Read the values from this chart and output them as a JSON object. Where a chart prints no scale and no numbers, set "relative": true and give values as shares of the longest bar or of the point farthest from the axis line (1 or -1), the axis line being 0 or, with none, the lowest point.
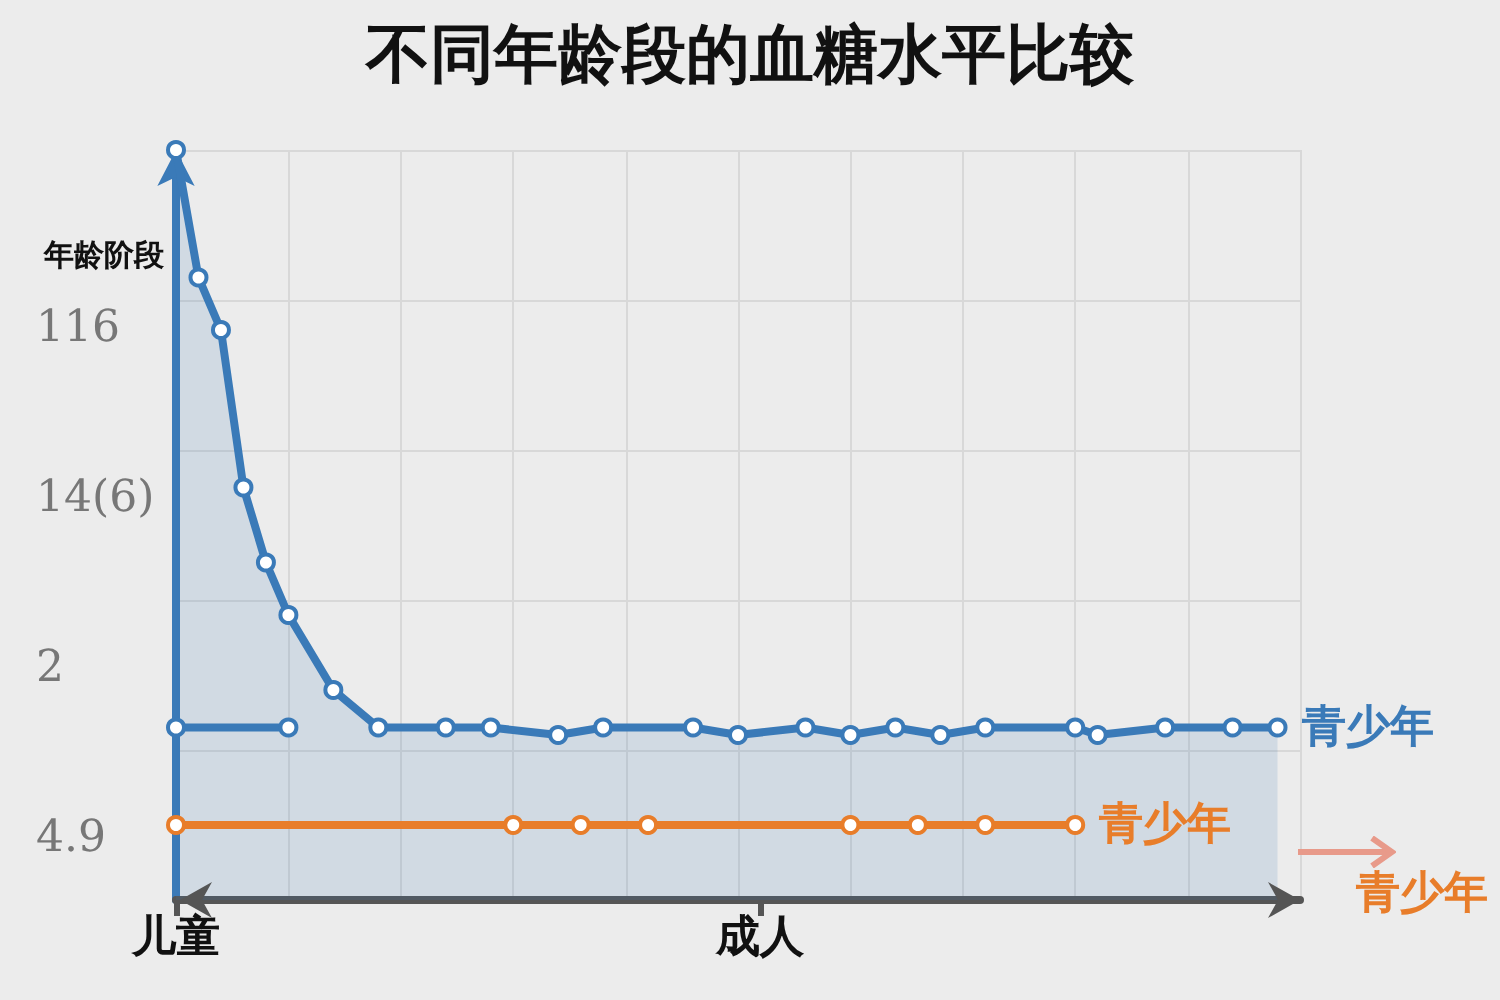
{
  "chart_data": {
    "type": "line",
    "title": "不同年龄段的血糖水平比较",
    "ylabel": "年龄阶段",
    "relative": true,
    "grid": true,
    "legend": false,
    "marker": "circle",
    "line_style": "solid",
    "categories": [
      "儿童",
      null,
      null,
      null,
      null,
      null,
      null,
      null,
      null,
      null,
      null,
      null,
      null,
      null,
      null,
      null,
      null,
      null,
      null,
      null,
      null,
      null,
      null,
      null,
      null,
      null,
      "成人",
      null,
      null,
      null,
      null,
      null,
      null,
      null,
      null,
      null,
      null,
      null,
      null,
      null,
      null,
      null,
      null,
      null,
      null,
      null,
      null,
      null,
      null,
      null,
      null
    ],
    "series": [
      {
        "name": "青少年",
        "type": "area",
        "color": "#3a7ab8",
        "values": [
          1,
          0.83,
          0.76,
          0.55,
          0.45,
          0.38,
          null,
          0.28,
          null,
          0.23,
          null,
          null,
          0.23,
          null,
          0.23,
          null,
          null,
          0.22,
          null,
          0.23,
          null,
          null,
          null,
          0.23,
          null,
          0.22,
          null,
          null,
          0.23,
          null,
          0.22,
          null,
          0.23,
          null,
          0.22,
          null,
          0.23,
          null,
          null,
          null,
          0.23,
          0.22,
          null,
          null,
          0.23,
          null,
          null,
          0.23,
          null,
          0.23,
          null
        ]
      },
      {
        "type": "line",
        "color": "#3a7ab8",
        "values": [
          0.23,
          null,
          null,
          null,
          null,
          0.23,
          null,
          null,
          null,
          null,
          null,
          null,
          null,
          null,
          null,
          null,
          null,
          null,
          null,
          null,
          null,
          null,
          null,
          null,
          null,
          null,
          null,
          null,
          null,
          null,
          null,
          null,
          null,
          null,
          null,
          null,
          null,
          null,
          null,
          null,
          null,
          null,
          null,
          null,
          null,
          null,
          null,
          null,
          null,
          null,
          null
        ]
      },
      {
        "name": "青少年",
        "color": "#e87d2a",
        "values": [
          0.1,
          null,
          null,
          null,
          null,
          null,
          null,
          null,
          null,
          null,
          null,
          null,
          null,
          null,
          null,
          0.1,
          null,
          null,
          0.1,
          null,
          null,
          0.1,
          null,
          null,
          null,
          null,
          null,
          null,
          null,
          null,
          0.1,
          null,
          null,
          0.1,
          null,
          null,
          0.1,
          null,
          null,
          null,
          0.1,
          null,
          null,
          null,
          null,
          null,
          null,
          null,
          null,
          null,
          null
        ]
      }
    ],
    "annotations": [
      "116",
      "14(6)",
      "2",
      "4.9",
      "青少年"
    ]
  }
}
